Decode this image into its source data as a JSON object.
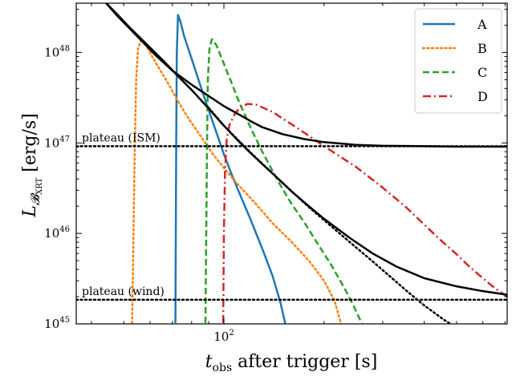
{
  "chart_data": {
    "type": "line",
    "xlabel": "t_obs after trigger [s]",
    "ylabel": "L_B_XRT [erg/s]",
    "xscale": "log",
    "yscale": "log",
    "xlim": [
      36,
      710
    ],
    "ylim": [
      1e+45,
      3.5e+48
    ],
    "x_tick_labels": [
      {
        "value": 100,
        "base": "10",
        "exp": "2"
      }
    ],
    "y_tick_labels": [
      {
        "value": 1e+45,
        "base": "10",
        "exp": "45"
      },
      {
        "value": 1e+46,
        "base": "10",
        "exp": "46"
      },
      {
        "value": 1e+47,
        "base": "10",
        "exp": "47"
      },
      {
        "value": 1e+48,
        "base": "10",
        "exp": "48"
      }
    ],
    "grid": false,
    "legend_position": "top-right",
    "annotations": [
      {
        "text": "plateau (ISM)",
        "y": 9.2e+46
      },
      {
        "text": "plateau (wind)",
        "y": 1.85e+45
      }
    ],
    "series": [
      {
        "name": "A",
        "color": "#1f77b4",
        "dash": "solid",
        "points": [
          [
            71.5,
            1.02e+45
          ],
          [
            71.9,
            1e+47
          ],
          [
            72.2,
            1e+48
          ],
          [
            72.8,
            2.6e+48
          ],
          [
            74,
            2.2e+48
          ],
          [
            76,
            1.5e+48
          ],
          [
            80,
            8.5e+47
          ],
          [
            85,
            4.3e+47
          ],
          [
            90,
            2.3e+47
          ],
          [
            95,
            1.3e+47
          ],
          [
            100,
            7.5e+46
          ],
          [
            105,
            4.7e+46
          ],
          [
            110,
            3.1e+46
          ],
          [
            120,
            1.45e+46
          ],
          [
            130,
            7e+45
          ],
          [
            140,
            3.4e+45
          ],
          [
            148,
            1.7e+45
          ],
          [
            153,
            1e+45
          ]
        ]
      },
      {
        "name": "B",
        "color": "#ff7f0e",
        "dash": "dotted",
        "points": [
          [
            53,
            1.02e+45
          ],
          [
            53.5,
            1e+46
          ],
          [
            54,
            1e+47
          ],
          [
            54.5,
            5e+47
          ],
          [
            55.2,
            1.1e+48
          ],
          [
            56.5,
            1.4e+48
          ],
          [
            58,
            1.25e+48
          ],
          [
            62,
            8e+47
          ],
          [
            67,
            5e+47
          ],
          [
            72,
            3.1e+47
          ],
          [
            78,
            1.9e+47
          ],
          [
            85,
            1.2e+47
          ],
          [
            92,
            7.8e+46
          ],
          [
            100,
            5.3e+46
          ],
          [
            110,
            3.5e+46
          ],
          [
            125,
            2.1e+46
          ],
          [
            140,
            1.3e+46
          ],
          [
            160,
            8e+45
          ],
          [
            180,
            5e+45
          ],
          [
            200,
            3e+45
          ],
          [
            215,
            1.8e+45
          ],
          [
            225,
            1e+45
          ]
        ]
      },
      {
        "name": "C",
        "color": "#2ca02c",
        "dash": "dashed",
        "points": [
          [
            88,
            1.02e+45
          ],
          [
            88.5,
            1e+46
          ],
          [
            89,
            1e+47
          ],
          [
            89.5,
            5e+47
          ],
          [
            90.5,
            1.1e+48
          ],
          [
            92,
            1.4e+48
          ],
          [
            95,
            1.2e+48
          ],
          [
            100,
            7.5e+47
          ],
          [
            105,
            4.8e+47
          ],
          [
            110,
            3.1e+47
          ],
          [
            120,
            1.5e+47
          ],
          [
            130,
            8.2e+46
          ],
          [
            140,
            4.9e+46
          ],
          [
            150,
            3.1e+46
          ],
          [
            160,
            2.1e+46
          ],
          [
            175,
            1.3e+46
          ],
          [
            190,
            8e+45
          ],
          [
            210,
            4.5e+45
          ],
          [
            230,
            2.5e+45
          ],
          [
            245,
            1.6e+45
          ],
          [
            260,
            1e+45
          ]
        ]
      },
      {
        "name": "D",
        "color": "#d62728",
        "dash": "dashdot",
        "points": [
          [
            99.5,
            1.02e+45
          ],
          [
            100,
            1e+46
          ],
          [
            100.8,
            5e+46
          ],
          [
            102,
            1.1e+47
          ],
          [
            104,
            1.6e+47
          ],
          [
            108,
            2.1e+47
          ],
          [
            112,
            2.5e+47
          ],
          [
            118,
            2.7e+47
          ],
          [
            125,
            2.65e+47
          ],
          [
            140,
            2.2e+47
          ],
          [
            160,
            1.6e+47
          ],
          [
            180,
            1.2e+47
          ],
          [
            200,
            9.2e+46
          ],
          [
            250,
            5.4e+46
          ],
          [
            300,
            3.2e+46
          ],
          [
            350,
            2e+46
          ],
          [
            400,
            1.25e+46
          ],
          [
            450,
            8.3e+45
          ],
          [
            500,
            5.9e+45
          ],
          [
            550,
            4.2e+45
          ],
          [
            600,
            3.2e+45
          ],
          [
            650,
            2.5e+45
          ],
          [
            710,
            2e+45
          ]
        ]
      },
      {
        "name": "",
        "color": "#000000",
        "dash": "solid",
        "points": [
          [
            44,
            3.6e+48
          ],
          [
            48,
            2.5e+48
          ],
          [
            52,
            1.85e+48
          ],
          [
            56,
            1.4e+48
          ],
          [
            62,
            9.5e+47
          ],
          [
            70,
            6.3e+47
          ],
          [
            80,
            4.4e+47
          ],
          [
            90,
            3.3e+47
          ],
          [
            100,
            2.55e+47
          ],
          [
            110,
            2.1e+47
          ],
          [
            120,
            1.75e+47
          ],
          [
            130,
            1.5e+47
          ],
          [
            150,
            1.25e+47
          ],
          [
            175,
            1.1e+47
          ],
          [
            200,
            1.02e+47
          ],
          [
            250,
            9.5e+46
          ],
          [
            300,
            9.3e+46
          ],
          [
            400,
            9.2e+46
          ],
          [
            500,
            9.1e+46
          ],
          [
            710,
            9.1e+46
          ]
        ]
      },
      {
        "name": "",
        "color": "#000000",
        "dash": "solid",
        "points": [
          [
            44,
            3.6e+48
          ],
          [
            48,
            2.6e+48
          ],
          [
            52,
            1.9e+48
          ],
          [
            56,
            1.45e+48
          ],
          [
            60,
            1.13e+48
          ],
          [
            66,
            8e+47
          ],
          [
            72,
            5.7e+47
          ],
          [
            80,
            3.85e+47
          ],
          [
            90,
            2.4e+47
          ],
          [
            100,
            1.55e+47
          ],
          [
            110,
            1.07e+47
          ],
          [
            120,
            7.8e+46
          ],
          [
            130,
            5.9e+46
          ],
          [
            140,
            4.6e+46
          ],
          [
            160,
            2.9e+46
          ],
          [
            180,
            2e+46
          ],
          [
            200,
            1.45e+46
          ],
          [
            240,
            8.8e+45
          ],
          [
            280,
            6e+45
          ],
          [
            330,
            4.3e+45
          ],
          [
            400,
            3.2e+45
          ],
          [
            500,
            2.6e+45
          ],
          [
            600,
            2.3e+45
          ],
          [
            710,
            2.1e+45
          ]
        ]
      },
      {
        "name": "",
        "color": "#000000",
        "dash": "dotted",
        "points": [
          [
            90,
            2.45e+47
          ],
          [
            100,
            1.55e+47
          ],
          [
            120,
            7.9e+46
          ],
          [
            140,
            4.6e+46
          ],
          [
            160,
            2.9e+46
          ],
          [
            180,
            1.95e+46
          ],
          [
            200,
            1.4e+46
          ],
          [
            240,
            7.9e+45
          ],
          [
            280,
            4.9e+45
          ],
          [
            320,
            3.2e+45
          ],
          [
            360,
            2.2e+45
          ],
          [
            400,
            1.6e+45
          ],
          [
            460,
            1.1e+45
          ],
          [
            480,
            1e+45
          ]
        ]
      },
      {
        "name": "",
        "color": "#000000",
        "dash": "dotted",
        "points": [
          [
            36,
            9.2e+46
          ],
          [
            710,
            9.2e+46
          ]
        ]
      },
      {
        "name": "",
        "color": "#000000",
        "dash": "dotted",
        "points": [
          [
            36,
            1.85e+45
          ],
          [
            710,
            1.85e+45
          ]
        ]
      }
    ]
  }
}
